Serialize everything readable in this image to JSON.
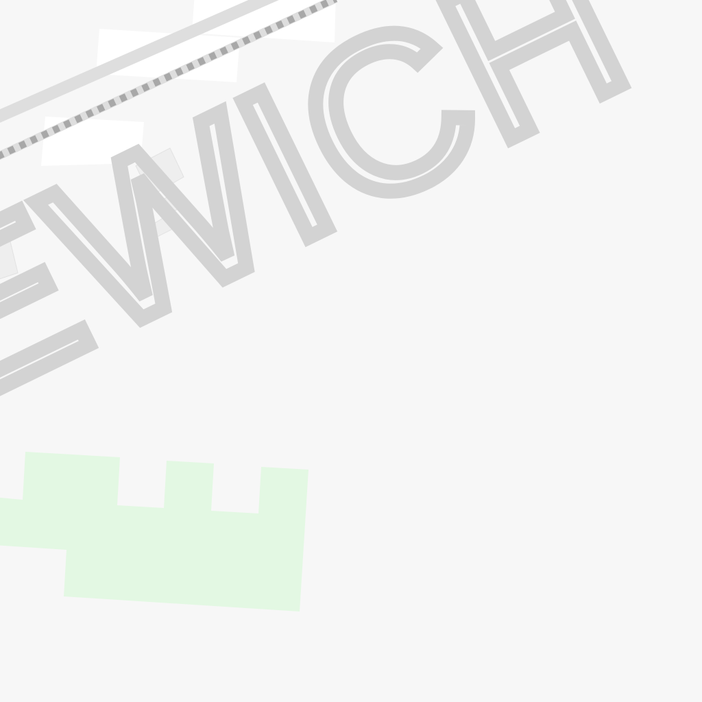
{
  "map": {
    "area_label": "EWICH",
    "colors": {
      "background": "#f7f7f7",
      "label": "#d3d3d3",
      "railway": "#dedede",
      "railway_dash": "#a8a8a8",
      "park": "#e3f8e3",
      "building": "#eeeeee",
      "road": "#ffffff"
    }
  }
}
